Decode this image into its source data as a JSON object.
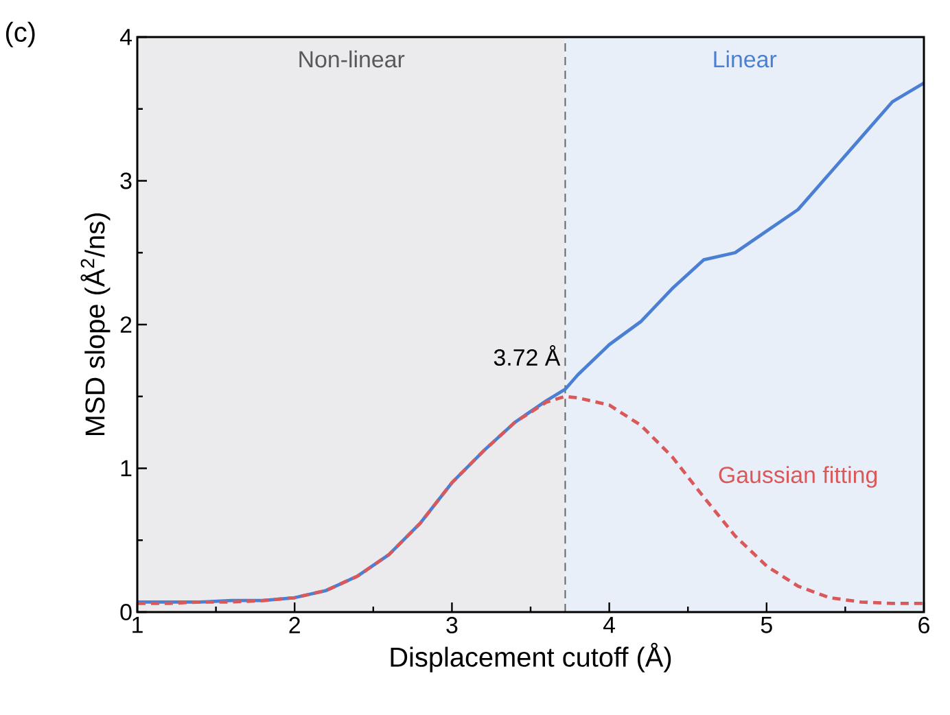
{
  "chart_data": {
    "type": "line",
    "xlabel": "Displacement cutoff (Å)",
    "ylabel": "MSD slope (Å$^{2}$/ns)",
    "xlim": [
      1,
      6
    ],
    "ylim": [
      0,
      4
    ],
    "xticks": [
      1,
      2,
      3,
      4,
      5,
      6
    ],
    "yticks": [
      0,
      1,
      2,
      3,
      4
    ],
    "series": [
      {
        "color": "#4a7fd4",
        "line_style": "solid",
        "x": [
          1,
          1.2,
          1.4,
          1.6,
          1.8,
          2,
          2.2,
          2.4,
          2.6,
          2.8,
          3,
          3.2,
          3.4,
          3.6,
          3.72,
          3.8,
          4,
          4.2,
          4.4,
          4.6,
          4.8,
          5,
          5.2,
          5.4,
          5.6,
          5.8,
          6
        ],
        "values": [
          0.07,
          0.07,
          0.07,
          0.08,
          0.08,
          0.1,
          0.15,
          0.25,
          0.4,
          0.62,
          0.9,
          1.12,
          1.32,
          1.47,
          1.55,
          1.65,
          1.86,
          2.02,
          2.25,
          2.45,
          2.5,
          2.65,
          2.8,
          3.05,
          3.3,
          3.55,
          3.68
        ]
      },
      {
        "name": "Gaussian fitting",
        "color": "#d9595a",
        "line_style": "dashed",
        "x": [
          1,
          1.2,
          1.4,
          1.6,
          1.8,
          2,
          2.2,
          2.4,
          2.6,
          2.8,
          3,
          3.2,
          3.4,
          3.6,
          3.72,
          3.8,
          4,
          4.2,
          4.4,
          4.6,
          4.8,
          5,
          5.2,
          5.4,
          5.6,
          5.8,
          6
        ],
        "values": [
          0.06,
          0.06,
          0.07,
          0.07,
          0.08,
          0.1,
          0.15,
          0.25,
          0.4,
          0.62,
          0.9,
          1.12,
          1.32,
          1.46,
          1.5,
          1.49,
          1.44,
          1.3,
          1.08,
          0.8,
          0.53,
          0.32,
          0.18,
          0.1,
          0.07,
          0.06,
          0.06
        ]
      }
    ],
    "bands": [
      {
        "axis": "x",
        "from": 1,
        "to": 3.72,
        "label": "Non-linear",
        "color": "#ebebee"
      },
      {
        "axis": "x",
        "from": 3.72,
        "to": 6,
        "label": "Linear",
        "color": "#e8eff9"
      }
    ],
    "ref_lines": [
      {
        "axis": "x",
        "value": 3.72,
        "label": "3.72 Å",
        "color": "#666666",
        "line_style": "dashed"
      }
    ],
    "annotations": [
      "(c)"
    ]
  }
}
